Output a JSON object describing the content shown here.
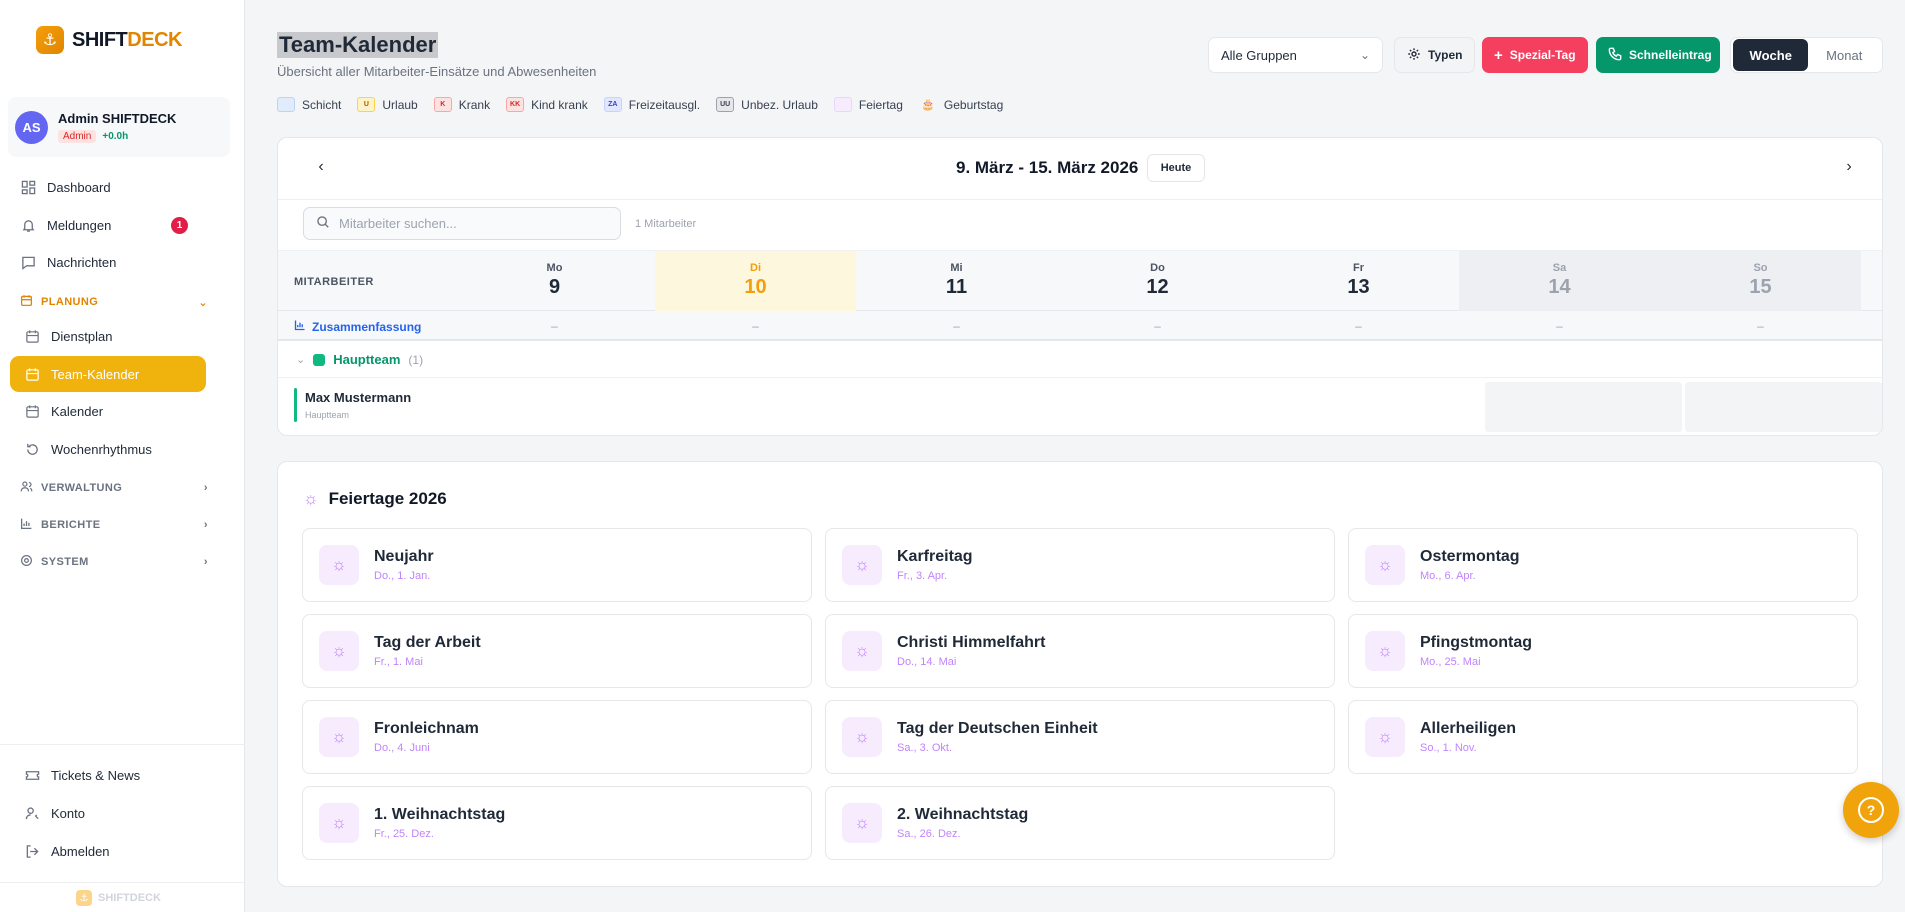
{
  "app": {
    "name_main": "SHIFT",
    "name_accent": "DECK",
    "footer": "SHIFTDECK"
  },
  "user": {
    "initials": "AS",
    "name": "Admin SHIFTDECK",
    "role": "Admin",
    "hours": "+0.0h"
  },
  "nav": {
    "dashboard": "Dashboard",
    "notifications": "Meldungen",
    "notifications_count": "1",
    "messages": "Nachrichten",
    "planning": "PLANUNG",
    "planning_items": [
      "Dienstplan",
      "Team-Kalender",
      "Kalender",
      "Wochenrhythmus"
    ],
    "admin": "VERWALTUNG",
    "reports": "BERICHTE",
    "system": "SYSTEM",
    "tickets": "Tickets & News",
    "account": "Konto",
    "logout": "Abmelden"
  },
  "header": {
    "title": "Team-Kalender",
    "subtitle": "Übersicht aller Mitarbeiter-Einsätze und Abwesenheiten",
    "group_select": "Alle Gruppen",
    "types_label": "Typen",
    "special_day_label": "Spezial-Tag",
    "quick_entry_label": "Schnelleintrag",
    "view_week": "Woche",
    "view_month": "Monat"
  },
  "legend": [
    {
      "code": "",
      "label": "Schicht",
      "bg": "#e0ecfb",
      "border": "#bfd3f2",
      "fg": "#2563eb"
    },
    {
      "code": "U",
      "label": "Urlaub",
      "bg": "#fef3c7",
      "border": "#fcd34d",
      "fg": "#b45309"
    },
    {
      "code": "K",
      "label": "Krank",
      "bg": "#fde2e2",
      "border": "#fca5a5",
      "fg": "#dc2626"
    },
    {
      "code": "KK",
      "label": "Kind krank",
      "bg": "#fde2e2",
      "border": "#fca5a5",
      "fg": "#dc2626"
    },
    {
      "code": "ZA",
      "label": "Freizeitausgl.",
      "bg": "#e0e7ff",
      "border": "#c7d2fe",
      "fg": "#4338ca"
    },
    {
      "code": "UU",
      "label": "Unbez. Urlaub",
      "bg": "#e5e7eb",
      "border": "#9ca3af",
      "fg": "#374151"
    },
    {
      "code": "",
      "label": "Feiertag",
      "bg": "#f6ecfd",
      "border": "#e9d5ff",
      "fg": "#a855f7"
    },
    {
      "code": "🎂",
      "label": "Geburtstag",
      "bg": "transparent",
      "border": "transparent",
      "fg": "#e08600"
    }
  ],
  "calendar": {
    "range": "9. März - 15. März 2026",
    "today_label": "Heute",
    "search_placeholder": "Mitarbeiter suchen...",
    "employee_count": "1 Mitarbeiter",
    "employee_header": "MITARBEITER",
    "days": [
      {
        "name": "Mo",
        "date": "9"
      },
      {
        "name": "Di",
        "date": "10"
      },
      {
        "name": "Mi",
        "date": "11"
      },
      {
        "name": "Do",
        "date": "12"
      },
      {
        "name": "Fr",
        "date": "13"
      },
      {
        "name": "Sa",
        "date": "14"
      },
      {
        "name": "So",
        "date": "15"
      }
    ],
    "summary_label": "Zusammenfassung",
    "summary_values": [
      "–",
      "–",
      "–",
      "–",
      "–",
      "–",
      "–"
    ],
    "group": {
      "name": "Hauptteam",
      "count": "(1)"
    },
    "employee": {
      "name": "Max Mustermann",
      "team": "Hauptteam"
    }
  },
  "holidays": {
    "title": "Feiertage 2026",
    "items": [
      {
        "name": "Neujahr",
        "date": "Do., 1. Jan."
      },
      {
        "name": "Karfreitag",
        "date": "Fr., 3. Apr."
      },
      {
        "name": "Ostermontag",
        "date": "Mo., 6. Apr."
      },
      {
        "name": "Tag der Arbeit",
        "date": "Fr., 1. Mai"
      },
      {
        "name": "Christi Himmelfahrt",
        "date": "Do., 14. Mai"
      },
      {
        "name": "Pfingstmontag",
        "date": "Mo., 25. Mai"
      },
      {
        "name": "Fronleichnam",
        "date": "Do., 4. Juni"
      },
      {
        "name": "Tag der Deutschen Einheit",
        "date": "Sa., 3. Okt."
      },
      {
        "name": "Allerheiligen",
        "date": "So., 1. Nov."
      },
      {
        "name": "1. Weihnachtstag",
        "date": "Fr., 25. Dez."
      },
      {
        "name": "2. Weihnachtstag",
        "date": "Sa., 26. Dez."
      }
    ]
  }
}
